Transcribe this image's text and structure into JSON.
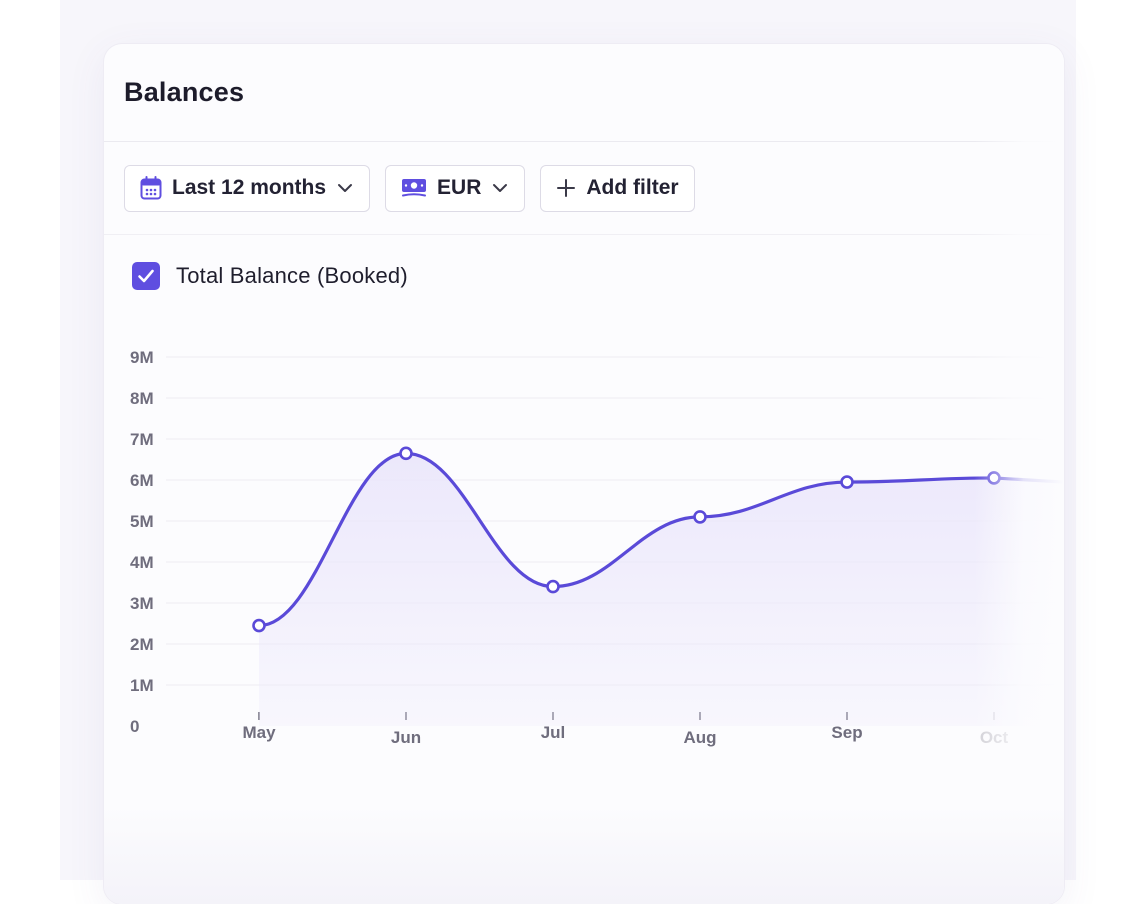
{
  "card": {
    "title": "Balances"
  },
  "filters": {
    "period": {
      "label": "Last 12 months",
      "icon": "calendar-icon"
    },
    "currency": {
      "label": "EUR",
      "icon": "banknote-icon"
    },
    "add_filter": {
      "label": "Add filter",
      "icon": "plus-icon"
    }
  },
  "legend": {
    "label": "Total Balance (Booked)",
    "checked": true
  },
  "colors": {
    "accent": "#5f4ee0",
    "line": "#5a4ad8",
    "fill": "#ebe7fb",
    "grid": "#eeedf2",
    "axis_text": "#6f6d7d"
  },
  "chart_data": {
    "type": "area",
    "categories": [
      "May",
      "Jun",
      "Jul",
      "Aug",
      "Sep",
      "Oct"
    ],
    "series": [
      {
        "name": "Total Balance (Booked)",
        "values": [
          2.45,
          6.65,
          3.4,
          5.1,
          5.95,
          6.05
        ]
      }
    ],
    "y_ticks": [
      "0",
      "1M",
      "2M",
      "3M",
      "4M",
      "5M",
      "6M",
      "7M",
      "8M",
      "9M"
    ],
    "ylim": [
      0,
      9
    ],
    "y_unit": "M",
    "grid": true
  }
}
